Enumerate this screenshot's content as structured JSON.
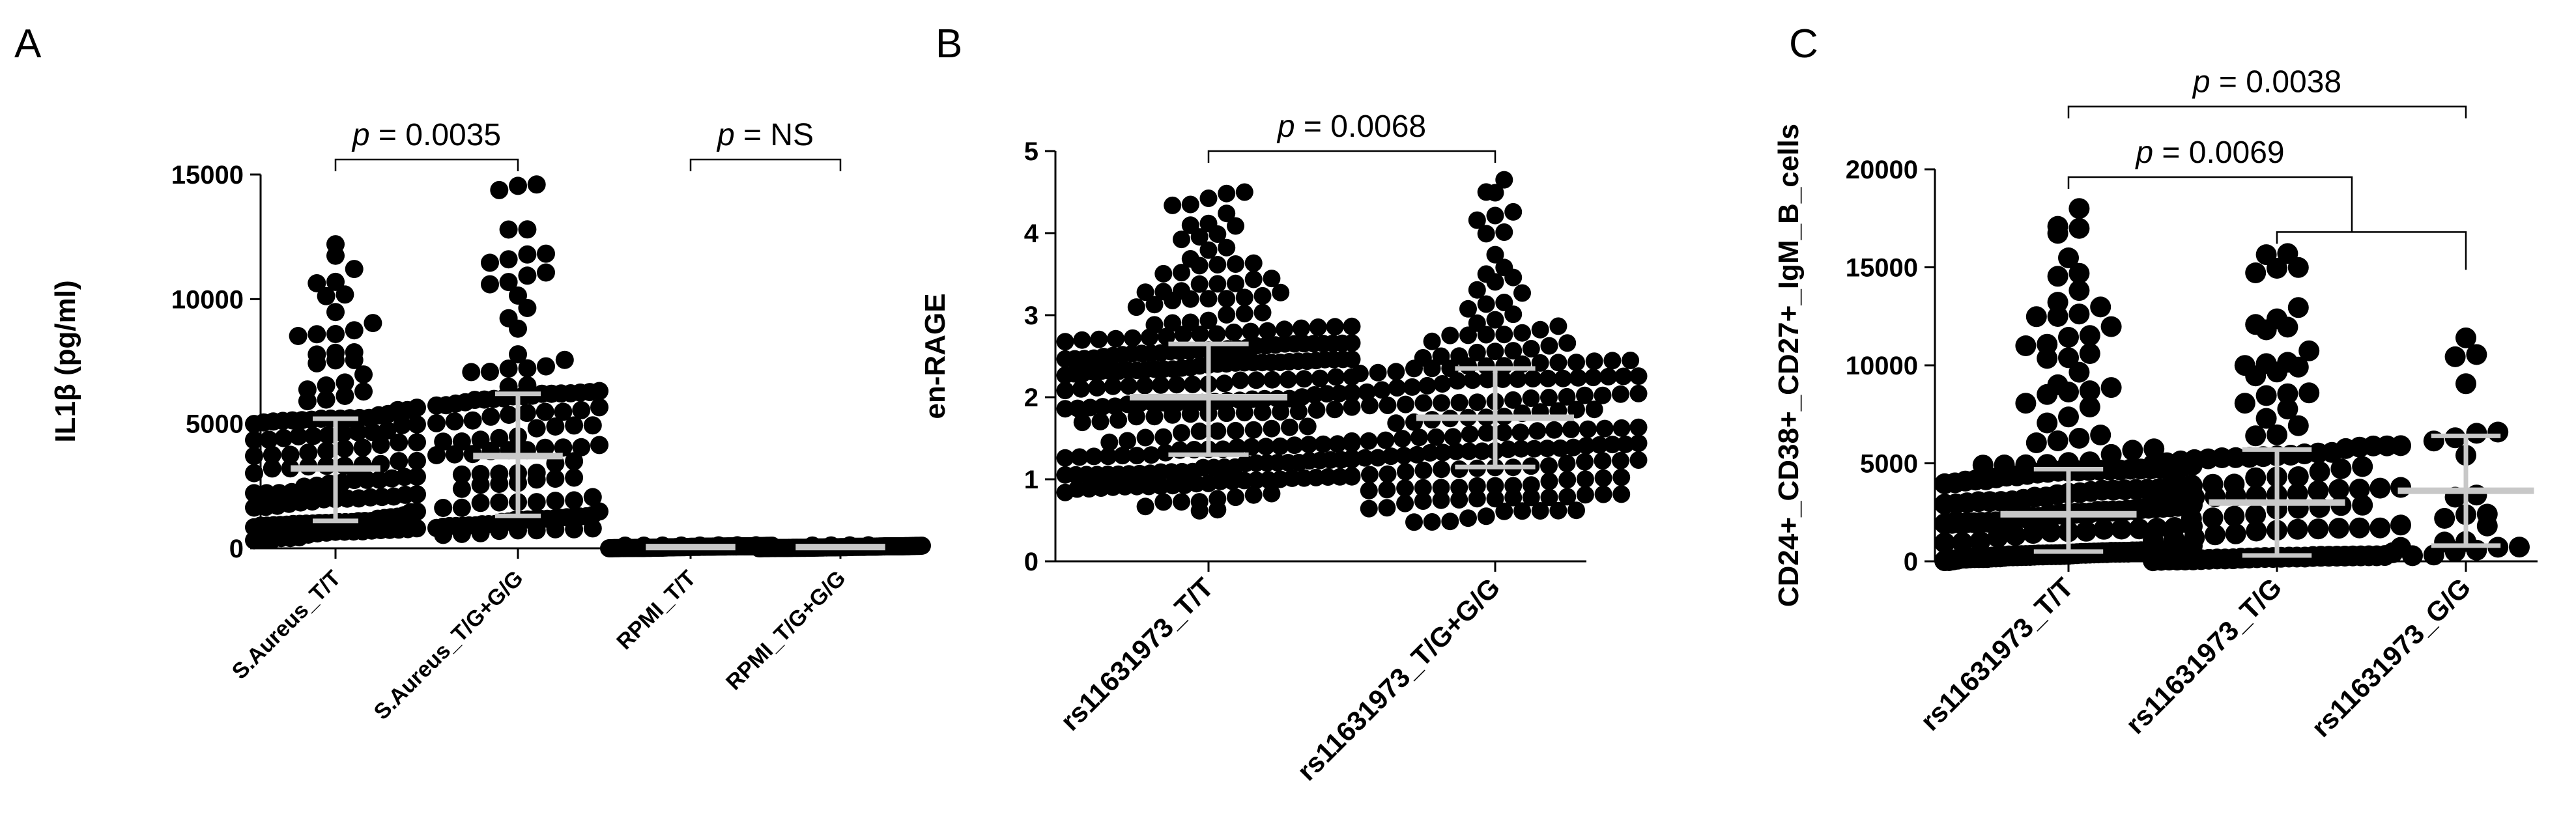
{
  "chart_data": [
    {
      "panel": "A",
      "type": "scatter",
      "ylabel": "IL1β (pg/ml)",
      "ylim": [
        0,
        15000
      ],
      "yticks": [
        0,
        5000,
        10000,
        15000
      ],
      "categories": [
        "S.Aureus_T/T",
        "S.Aureus_T/G+G/G",
        "RPMI_T/T",
        "RPMI_T/G+G/G"
      ],
      "groups": [
        {
          "median": 3200,
          "q1": 1100,
          "q3": 5200,
          "min": 300,
          "max": 12200,
          "n": 150
        },
        {
          "median": 3700,
          "q1": 1300,
          "q3": 6200,
          "min": 500,
          "max": 14600,
          "n": 130
        },
        {
          "median": 50,
          "q1": 20,
          "q3": 80,
          "min": 0,
          "max": 120,
          "n": 150
        },
        {
          "median": 50,
          "q1": 20,
          "q3": 80,
          "min": 0,
          "max": 120,
          "n": 130
        }
      ],
      "annotations": [
        {
          "from": 0,
          "to": 1,
          "p": "0.0035",
          "level": 15600
        },
        {
          "from": 2,
          "to": 3,
          "p": "NS",
          "level": 15600
        }
      ]
    },
    {
      "panel": "B",
      "type": "scatter",
      "ylabel": "en-RAGE",
      "ylim": [
        0,
        5
      ],
      "yticks": [
        0,
        1,
        2,
        3,
        4,
        5
      ],
      "categories": [
        "rs11631973_T/T",
        "rs11631973_T/G+G/G"
      ],
      "groups": [
        {
          "median": 2.0,
          "q1": 1.3,
          "q3": 2.65,
          "min": 0.6,
          "max": 4.5,
          "n": 280
        },
        {
          "median": 1.75,
          "q1": 1.15,
          "q3": 2.35,
          "min": 0.45,
          "max": 4.65,
          "n": 200
        }
      ],
      "annotations": [
        {
          "from": 0,
          "to": 1,
          "p": "0.0068",
          "level": 5.0
        }
      ]
    },
    {
      "panel": "C",
      "type": "scatter",
      "ylabel": "CD24+_CD38+_CD27+_IgM_B_cells",
      "ylim": [
        0,
        20000
      ],
      "yticks": [
        0,
        5000,
        10000,
        15000,
        20000
      ],
      "categories": [
        "rs11631973_T/T",
        "rs11631973_T/G",
        "rs11631973_G/G"
      ],
      "groups": [
        {
          "median": 2400,
          "q1": 500,
          "q3": 4700,
          "min": 0,
          "max": 18000,
          "n": 200
        },
        {
          "median": 3000,
          "q1": 300,
          "q3": 5700,
          "min": 0,
          "max": 15700,
          "n": 120
        },
        {
          "median": 3600,
          "q1": 800,
          "q3": 6400,
          "min": 200,
          "max": 11400,
          "n": 22
        }
      ],
      "annotations": [
        {
          "kind": "simple",
          "from": 0,
          "to": 2,
          "p": "0.0038",
          "level": 23200
        },
        {
          "kind": "group-vs-combined",
          "ref": 0,
          "combined": [
            1,
            2
          ],
          "p": "0.0069",
          "level": 19600,
          "sublevel": 16800
        }
      ]
    }
  ],
  "panels": [
    "A",
    "B",
    "C"
  ],
  "p_prefix": "p",
  "p_equals": " = "
}
